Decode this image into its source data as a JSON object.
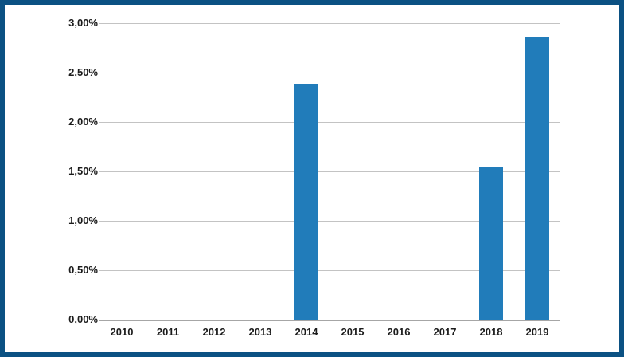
{
  "chart_data": {
    "type": "bar",
    "title": "",
    "xlabel": "",
    "ylabel": "",
    "categories": [
      "2010",
      "2011",
      "2012",
      "2013",
      "2014",
      "2015",
      "2016",
      "2017",
      "2018",
      "2019"
    ],
    "values": [
      0,
      0,
      0,
      0,
      2.38,
      0,
      0,
      0,
      1.55,
      2.86
    ],
    "value_unit": "%",
    "ylim": [
      0,
      3
    ],
    "ytick_step": 0.5,
    "yticks": [
      {
        "value": 3.0,
        "label": "3,00%"
      },
      {
        "value": 2.5,
        "label": "2,50%"
      },
      {
        "value": 2.0,
        "label": "2,00%"
      },
      {
        "value": 1.5,
        "label": "1,50%"
      },
      {
        "value": 1.0,
        "label": "1,00%"
      },
      {
        "value": 0.5,
        "label": "0,50%"
      },
      {
        "value": 0.0,
        "label": "0,00%"
      }
    ],
    "grid": "horizontal",
    "legend": "none",
    "colors": {
      "bar": "#217cba",
      "frame_border": "#0b5183",
      "gridline": "#c3c3c3",
      "axis_line": "#a6a6a6",
      "tick_text": "#1c1c1c",
      "background": "#ffffff"
    }
  }
}
